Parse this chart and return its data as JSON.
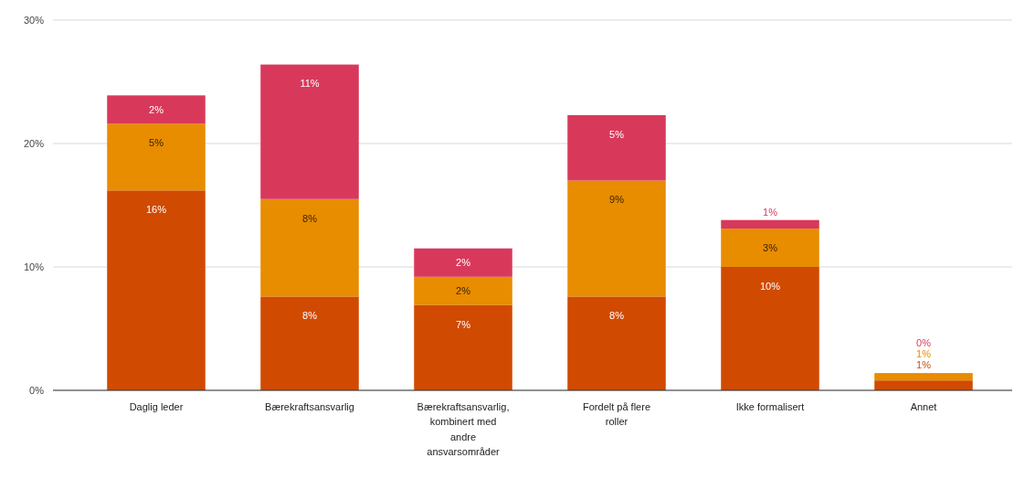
{
  "chart_data": {
    "type": "bar",
    "stacked": true,
    "categories": [
      "Daglig leder",
      "Bærekraftsansvarlig",
      "Bærekraftsansvarlig, kombinert med andre ansvarsområder",
      "Fordelt på flere roller",
      "Ikke formalisert",
      "Annet"
    ],
    "series": [
      {
        "color": "#d04a02",
        "values": [
          16.2,
          7.6,
          6.9,
          7.6,
          10.0,
          0.8
        ],
        "value_labels": [
          "16%",
          "8%",
          "7%",
          "8%",
          "10%",
          "1%"
        ]
      },
      {
        "color": "#e88c00",
        "values": [
          5.4,
          7.9,
          2.3,
          9.4,
          3.1,
          0.6
        ],
        "value_labels": [
          "5%",
          "8%",
          "2%",
          "9%",
          "3%",
          "1%"
        ]
      },
      {
        "color": "#d8395b",
        "values": [
          2.3,
          10.9,
          2.3,
          5.3,
          0.7,
          0
        ],
        "value_labels": [
          "2%",
          "11%",
          "2%",
          "5%",
          "1%",
          "0%"
        ]
      }
    ],
    "ylim": [
      0,
      30
    ],
    "yticks": [
      {
        "value": 0,
        "label": "0%"
      },
      {
        "value": 10,
        "label": "10%"
      },
      {
        "value": 20,
        "label": "20%"
      },
      {
        "value": 30,
        "label": "30%"
      }
    ],
    "grid": "y"
  }
}
